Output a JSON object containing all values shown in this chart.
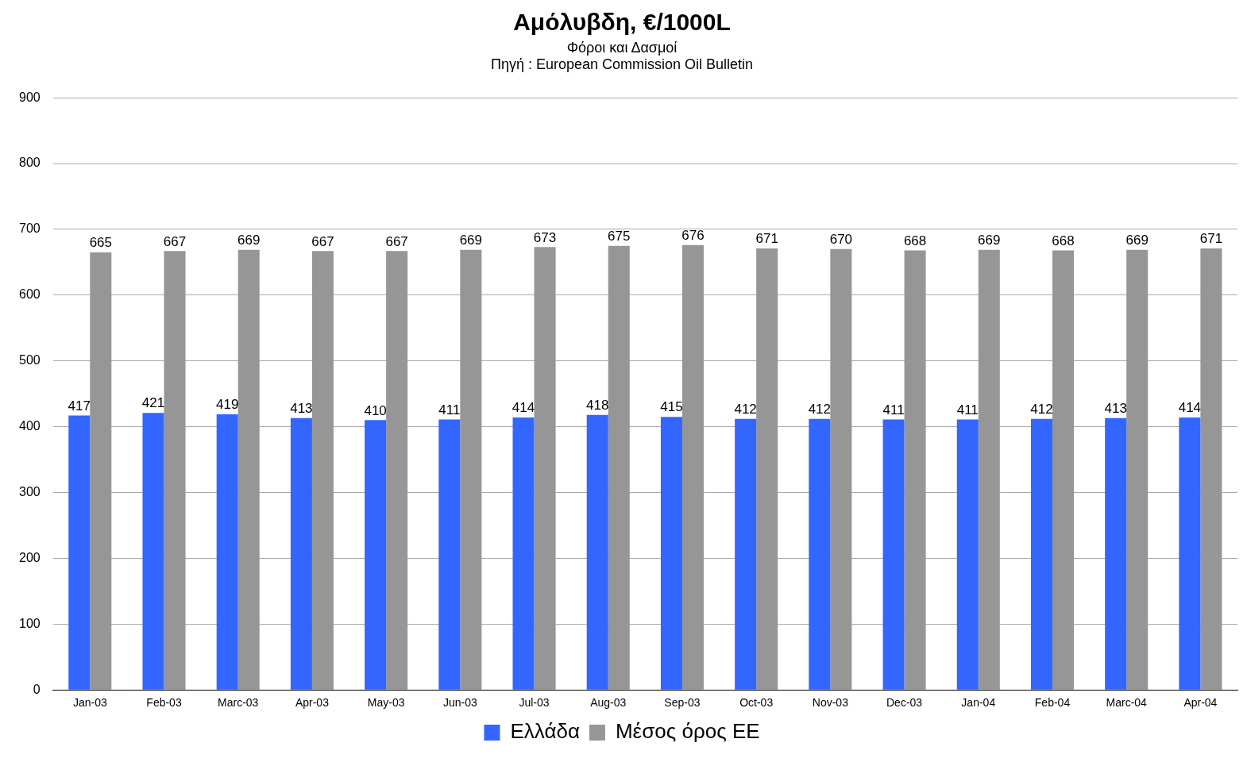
{
  "chart_data": {
    "type": "bar",
    "title": "Αμόλυβδη, €/1000L",
    "subtitle": "Φόροι και Δασμοί",
    "annotations": [
      "Πηγή : European Commission Oil Bulletin"
    ],
    "categories": [
      "Jan-03",
      "Feb-03",
      "Marc-03",
      "Apr-03",
      "May-03",
      "Jun-03",
      "Jul-03",
      "Aug-03",
      "Sep-03",
      "Oct-03",
      "Nov-03",
      "Dec-03",
      "Jan-04",
      "Feb-04",
      "Marc-04",
      "Apr-04"
    ],
    "series": [
      {
        "name": "Ελλάδα",
        "color": "#3366ff",
        "values": [
          417,
          421,
          419,
          413,
          410,
          411,
          414,
          418,
          415,
          412,
          412,
          411,
          411,
          412,
          413,
          414
        ]
      },
      {
        "name": "Μέσος όρος ΕΕ",
        "color": "#969696",
        "values": [
          665,
          667,
          669,
          667,
          667,
          669,
          673,
          675,
          676,
          671,
          670,
          668,
          669,
          668,
          669,
          671
        ]
      }
    ],
    "ylim": [
      0,
      900
    ],
    "yticks": [
      0,
      100,
      200,
      300,
      400,
      500,
      600,
      700,
      800,
      900
    ],
    "grid": "y",
    "legend": "bottom",
    "data_labels": true
  }
}
